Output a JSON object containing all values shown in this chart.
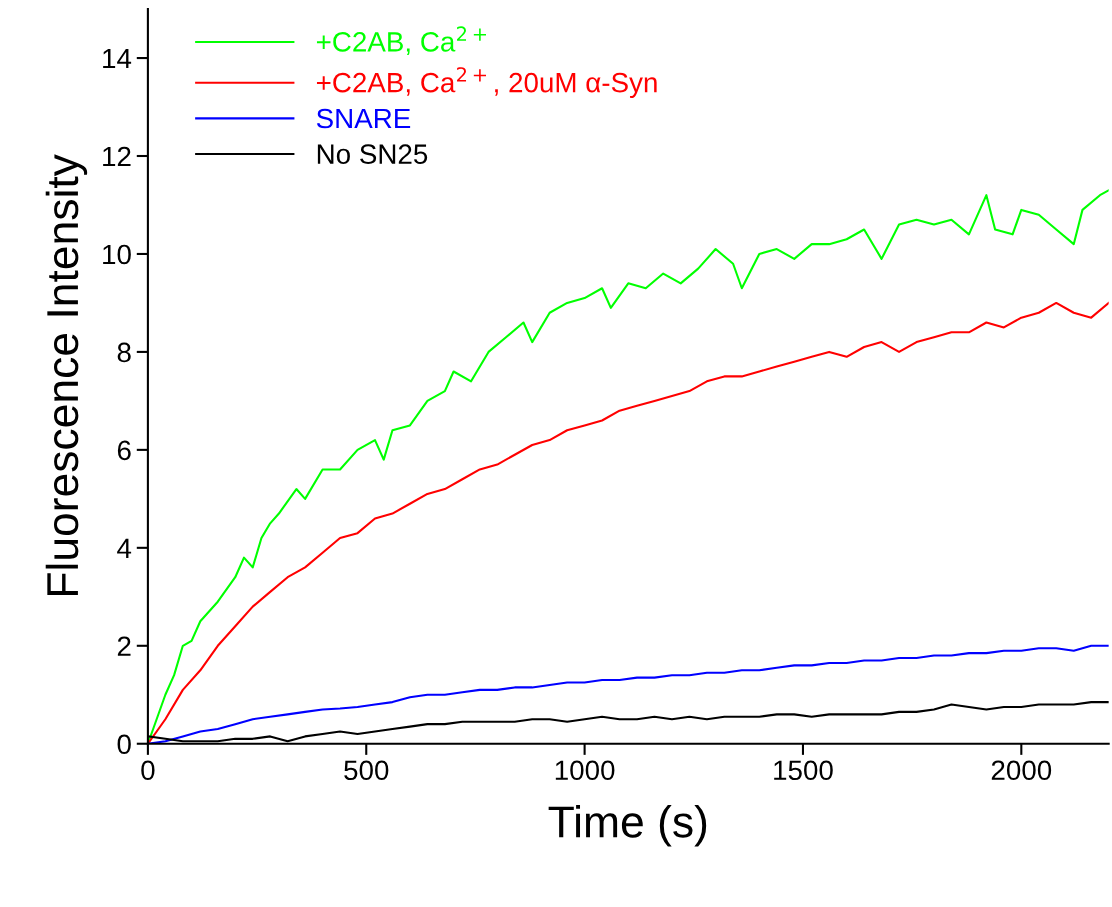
{
  "chart_data": {
    "type": "line",
    "xlabel": "Time (s)",
    "ylabel": "Fluorescence Intensity",
    "xlim": [
      0,
      2200
    ],
    "ylim": [
      0,
      15
    ],
    "xticks": [
      0,
      500,
      1000,
      1500,
      2000
    ],
    "yticks": [
      0,
      2,
      4,
      6,
      8,
      10,
      12,
      14
    ],
    "grid": false,
    "legend": "top left",
    "line_style": "solid",
    "marker": "none",
    "series": [
      {
        "name": "+C2AB, Ca$^{2+}$",
        "color": "#00ff00",
        "x": [
          0,
          20,
          40,
          60,
          80,
          100,
          120,
          140,
          160,
          200,
          220,
          240,
          260,
          280,
          300,
          340,
          360,
          400,
          440,
          480,
          520,
          540,
          560,
          600,
          640,
          680,
          700,
          740,
          780,
          820,
          860,
          880,
          920,
          960,
          1000,
          1040,
          1060,
          1100,
          1140,
          1180,
          1220,
          1260,
          1300,
          1340,
          1360,
          1400,
          1440,
          1480,
          1520,
          1560,
          1600,
          1640,
          1680,
          1720,
          1760,
          1800,
          1840,
          1880,
          1920,
          1940,
          1980,
          2000,
          2040,
          2080,
          2120,
          2140,
          2180,
          2200
        ],
        "values": [
          0,
          0.5,
          1.0,
          1.4,
          2.0,
          2.1,
          2.5,
          2.7,
          2.9,
          3.4,
          3.8,
          3.6,
          4.2,
          4.5,
          4.7,
          5.2,
          5.0,
          5.6,
          5.6,
          6.0,
          6.2,
          5.8,
          6.4,
          6.5,
          7.0,
          7.2,
          7.6,
          7.4,
          8.0,
          8.3,
          8.6,
          8.2,
          8.8,
          9.0,
          9.1,
          9.3,
          8.9,
          9.4,
          9.3,
          9.6,
          9.4,
          9.7,
          10.1,
          9.8,
          9.3,
          10.0,
          10.1,
          9.9,
          10.2,
          10.2,
          10.3,
          10.5,
          9.9,
          10.6,
          10.7,
          10.6,
          10.7,
          10.4,
          11.2,
          10.5,
          10.4,
          10.9,
          10.8,
          10.5,
          10.2,
          10.9,
          11.2,
          11.3
        ]
      },
      {
        "name": "+C2AB, Ca$^{2+}$, 20uM α-Syn",
        "color": "#ff0000",
        "x": [
          0,
          40,
          80,
          120,
          160,
          200,
          240,
          280,
          320,
          360,
          400,
          440,
          480,
          520,
          560,
          600,
          640,
          680,
          720,
          760,
          800,
          840,
          880,
          920,
          960,
          1000,
          1040,
          1080,
          1120,
          1160,
          1200,
          1240,
          1280,
          1320,
          1360,
          1400,
          1440,
          1480,
          1520,
          1560,
          1600,
          1640,
          1680,
          1720,
          1760,
          1800,
          1840,
          1880,
          1920,
          1960,
          2000,
          2040,
          2080,
          2120,
          2160,
          2200
        ],
        "values": [
          0,
          0.5,
          1.1,
          1.5,
          2.0,
          2.4,
          2.8,
          3.1,
          3.4,
          3.6,
          3.9,
          4.2,
          4.3,
          4.6,
          4.7,
          4.9,
          5.1,
          5.2,
          5.4,
          5.6,
          5.7,
          5.9,
          6.1,
          6.2,
          6.4,
          6.5,
          6.6,
          6.8,
          6.9,
          7.0,
          7.1,
          7.2,
          7.4,
          7.5,
          7.5,
          7.6,
          7.7,
          7.8,
          7.9,
          8.0,
          7.9,
          8.1,
          8.2,
          8.0,
          8.2,
          8.3,
          8.4,
          8.4,
          8.6,
          8.5,
          8.7,
          8.8,
          9.0,
          8.8,
          8.7,
          9.0
        ]
      },
      {
        "name": "SNARE",
        "color": "#0000ff",
        "x": [
          0,
          40,
          80,
          120,
          160,
          200,
          240,
          280,
          320,
          360,
          400,
          440,
          480,
          520,
          560,
          600,
          640,
          680,
          720,
          760,
          800,
          840,
          880,
          920,
          960,
          1000,
          1040,
          1080,
          1120,
          1160,
          1200,
          1240,
          1280,
          1320,
          1360,
          1400,
          1440,
          1480,
          1520,
          1560,
          1600,
          1640,
          1680,
          1720,
          1760,
          1800,
          1840,
          1880,
          1920,
          1960,
          2000,
          2040,
          2080,
          2120,
          2160,
          2200
        ],
        "values": [
          0,
          0.05,
          0.15,
          0.25,
          0.3,
          0.4,
          0.5,
          0.55,
          0.6,
          0.65,
          0.7,
          0.72,
          0.75,
          0.8,
          0.85,
          0.95,
          1.0,
          1.0,
          1.05,
          1.1,
          1.1,
          1.15,
          1.15,
          1.2,
          1.25,
          1.25,
          1.3,
          1.3,
          1.35,
          1.35,
          1.4,
          1.4,
          1.45,
          1.45,
          1.5,
          1.5,
          1.55,
          1.6,
          1.6,
          1.65,
          1.65,
          1.7,
          1.7,
          1.75,
          1.75,
          1.8,
          1.8,
          1.85,
          1.85,
          1.9,
          1.9,
          1.95,
          1.95,
          1.9,
          2.0,
          2.0
        ]
      },
      {
        "name": "No SN25",
        "color": "#000000",
        "x": [
          0,
          40,
          80,
          120,
          160,
          200,
          240,
          280,
          320,
          360,
          400,
          440,
          480,
          520,
          560,
          600,
          640,
          680,
          720,
          760,
          800,
          840,
          880,
          920,
          960,
          1000,
          1040,
          1080,
          1120,
          1160,
          1200,
          1240,
          1280,
          1320,
          1360,
          1400,
          1440,
          1480,
          1520,
          1560,
          1600,
          1640,
          1680,
          1720,
          1760,
          1800,
          1840,
          1880,
          1920,
          1960,
          2000,
          2040,
          2080,
          2120,
          2160,
          2200
        ],
        "values": [
          0.15,
          0.1,
          0.05,
          0.05,
          0.05,
          0.1,
          0.1,
          0.15,
          0.05,
          0.15,
          0.2,
          0.25,
          0.2,
          0.25,
          0.3,
          0.35,
          0.4,
          0.4,
          0.45,
          0.45,
          0.45,
          0.45,
          0.5,
          0.5,
          0.45,
          0.5,
          0.55,
          0.5,
          0.5,
          0.55,
          0.5,
          0.55,
          0.5,
          0.55,
          0.55,
          0.55,
          0.6,
          0.6,
          0.55,
          0.6,
          0.6,
          0.6,
          0.6,
          0.65,
          0.65,
          0.7,
          0.8,
          0.75,
          0.7,
          0.75,
          0.75,
          0.8,
          0.8,
          0.8,
          0.85,
          0.85
        ]
      }
    ]
  }
}
